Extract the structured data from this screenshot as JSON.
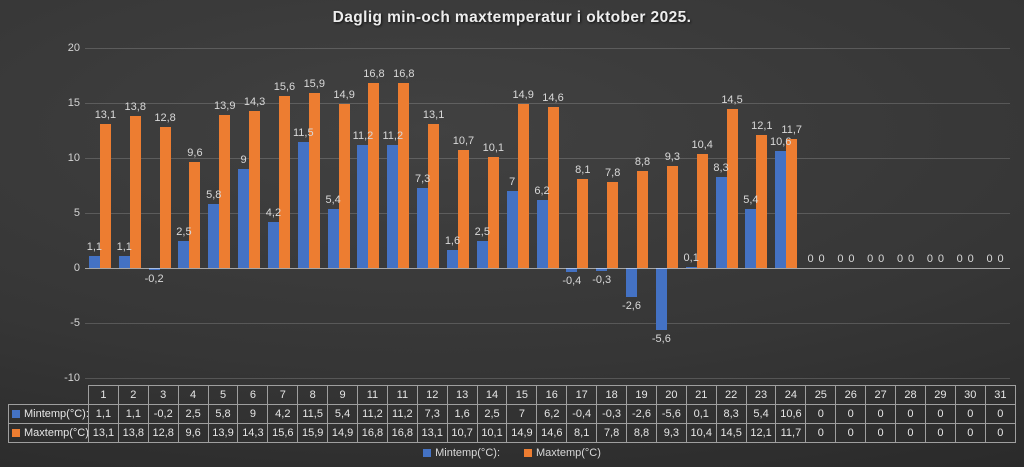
{
  "title": "Daglig min-och maxtemperatur i oktober 2025.",
  "y_axis_ticks": [
    "20",
    "15",
    "10",
    "5",
    "0",
    "-5",
    "-10"
  ],
  "chart_data": {
    "type": "bar",
    "title": "Daglig min-och maxtemperatur i oktober 2025.",
    "xlabel": "",
    "ylabel": "",
    "ylim": [
      -10,
      20
    ],
    "y_tick_step": 5,
    "grid": true,
    "legend_position": "bottom",
    "categories": [
      "1",
      "2",
      "3",
      "4",
      "5",
      "6",
      "7",
      "8",
      "9",
      "11",
      "11",
      "12",
      "13",
      "14",
      "15",
      "16",
      "17",
      "18",
      "19",
      "20",
      "21",
      "22",
      "23",
      "24",
      "25",
      "26",
      "27",
      "28",
      "29",
      "30",
      "31"
    ],
    "series": [
      {
        "name": "Mintemp(°C):",
        "color": "#4472C4",
        "values": [
          1.1,
          1.1,
          -0.2,
          2.5,
          5.8,
          9,
          4.2,
          11.5,
          5.4,
          11.2,
          11.2,
          7.3,
          1.6,
          2.5,
          7,
          6.2,
          -0.4,
          -0.3,
          -2.6,
          -5.6,
          0.1,
          8.3,
          5.4,
          10.6,
          0,
          0,
          0,
          0,
          0,
          0,
          0
        ],
        "labels": [
          "1,1",
          "1,1",
          "-0,2",
          "2,5",
          "5,8",
          "9",
          "4,2",
          "11,5",
          "5,4",
          "11,2",
          "11,2",
          "7,3",
          "1,6",
          "2,5",
          "7",
          "6,2",
          "-0,4",
          "-0,3",
          "-2,6",
          "-5,6",
          "0,1",
          "8,3",
          "5,4",
          "10,6",
          "0",
          "0",
          "0",
          "0",
          "0",
          "0",
          "0"
        ]
      },
      {
        "name": "Maxtemp(°C)",
        "color": "#ED7D31",
        "values": [
          13.1,
          13.8,
          12.8,
          9.6,
          13.9,
          14.3,
          15.6,
          15.9,
          14.9,
          16.8,
          16.8,
          13.1,
          10.7,
          10.1,
          14.9,
          14.6,
          8.1,
          7.8,
          8.8,
          9.3,
          10.4,
          14.5,
          12.1,
          11.7,
          0,
          0,
          0,
          0,
          0,
          0,
          0
        ],
        "labels": [
          "13,1",
          "13,8",
          "12,8",
          "9,6",
          "13,9",
          "14,3",
          "15,6",
          "15,9",
          "14,9",
          "16,8",
          "16,8",
          "13,1",
          "10,7",
          "10,1",
          "14,9",
          "14,6",
          "8,1",
          "7,8",
          "8,8",
          "9,3",
          "10,4",
          "14,5",
          "12,1",
          "11,7",
          "0",
          "0",
          "0",
          "0",
          "0",
          "0",
          "0"
        ]
      }
    ]
  }
}
